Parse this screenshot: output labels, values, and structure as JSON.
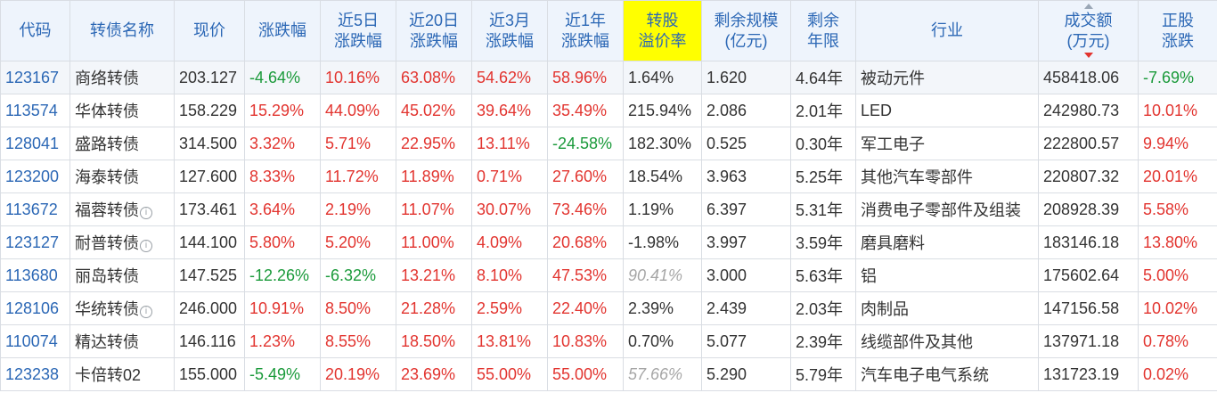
{
  "headers": [
    {
      "key": "code",
      "lines": [
        "代码"
      ]
    },
    {
      "key": "name",
      "lines": [
        "转债名称"
      ]
    },
    {
      "key": "price",
      "lines": [
        "现价"
      ]
    },
    {
      "key": "chg",
      "lines": [
        "涨跌幅"
      ]
    },
    {
      "key": "chg5d",
      "lines": [
        "近5日",
        "涨跌幅"
      ]
    },
    {
      "key": "chg20d",
      "lines": [
        "近20日",
        "涨跌幅"
      ]
    },
    {
      "key": "chg3m",
      "lines": [
        "近3月",
        "涨跌幅"
      ]
    },
    {
      "key": "chg1y",
      "lines": [
        "近1年",
        "涨跌幅"
      ]
    },
    {
      "key": "premium",
      "lines": [
        "转股",
        "溢价率"
      ]
    },
    {
      "key": "scale",
      "lines": [
        "剩余规模",
        "(亿元)"
      ]
    },
    {
      "key": "years",
      "lines": [
        "剩余",
        "年限"
      ]
    },
    {
      "key": "industry",
      "lines": [
        "行业"
      ]
    },
    {
      "key": "turnover",
      "lines": [
        "成交额",
        "(万元)"
      ]
    },
    {
      "key": "stock_chg",
      "lines": [
        "正股",
        "涨跌"
      ]
    }
  ],
  "rows": [
    {
      "code": "123167",
      "name": "商络转债",
      "info": false,
      "price": "203.127",
      "chg": "-4.64%",
      "chg5d": "10.16%",
      "chg20d": "63.08%",
      "chg3m": "54.62%",
      "chg1y": "58.96%",
      "premium": "1.64%",
      "premium_muted": false,
      "scale": "1.620",
      "years": "4.64年",
      "industry": "被动元件",
      "turnover": "458418.06",
      "stock_chg": "-7.69%"
    },
    {
      "code": "113574",
      "name": "华体转债",
      "info": false,
      "price": "158.229",
      "chg": "15.29%",
      "chg5d": "44.09%",
      "chg20d": "45.02%",
      "chg3m": "39.64%",
      "chg1y": "35.49%",
      "premium": "215.94%",
      "premium_muted": false,
      "scale": "2.086",
      "years": "2.01年",
      "industry": "LED",
      "turnover": "242980.73",
      "stock_chg": "10.01%"
    },
    {
      "code": "128041",
      "name": "盛路转债",
      "info": false,
      "price": "314.500",
      "chg": "3.32%",
      "chg5d": "5.71%",
      "chg20d": "22.95%",
      "chg3m": "13.11%",
      "chg1y": "-24.58%",
      "premium": "182.30%",
      "premium_muted": false,
      "scale": "0.525",
      "years": "0.30年",
      "industry": "军工电子",
      "turnover": "222800.57",
      "stock_chg": "9.94%"
    },
    {
      "code": "123200",
      "name": "海泰转债",
      "info": false,
      "price": "127.600",
      "chg": "8.33%",
      "chg5d": "11.72%",
      "chg20d": "11.89%",
      "chg3m": "0.71%",
      "chg1y": "27.60%",
      "premium": "18.54%",
      "premium_muted": false,
      "scale": "3.963",
      "years": "5.25年",
      "industry": "其他汽车零部件",
      "turnover": "220807.32",
      "stock_chg": "20.01%"
    },
    {
      "code": "113672",
      "name": "福蓉转债",
      "info": true,
      "price": "173.461",
      "chg": "3.64%",
      "chg5d": "2.19%",
      "chg20d": "11.07%",
      "chg3m": "30.07%",
      "chg1y": "73.46%",
      "premium": "1.19%",
      "premium_muted": false,
      "scale": "6.397",
      "years": "5.31年",
      "industry": "消费电子零部件及组装",
      "turnover": "208928.39",
      "stock_chg": "5.58%"
    },
    {
      "code": "123127",
      "name": "耐普转债",
      "info": true,
      "price": "144.100",
      "chg": "5.80%",
      "chg5d": "5.20%",
      "chg20d": "11.00%",
      "chg3m": "4.09%",
      "chg1y": "20.68%",
      "premium": "-1.98%",
      "premium_muted": false,
      "scale": "3.997",
      "years": "3.59年",
      "industry": "磨具磨料",
      "turnover": "183146.18",
      "stock_chg": "13.80%"
    },
    {
      "code": "113680",
      "name": "丽岛转债",
      "info": false,
      "price": "147.525",
      "chg": "-12.26%",
      "chg5d": "-6.32%",
      "chg20d": "13.21%",
      "chg3m": "8.10%",
      "chg1y": "47.53%",
      "premium": "90.41%",
      "premium_muted": true,
      "scale": "3.000",
      "years": "5.63年",
      "industry": "铝",
      "turnover": "175602.64",
      "stock_chg": "5.00%"
    },
    {
      "code": "128106",
      "name": "华统转债",
      "info": true,
      "price": "246.000",
      "chg": "10.91%",
      "chg5d": "8.50%",
      "chg20d": "21.28%",
      "chg3m": "2.59%",
      "chg1y": "22.40%",
      "premium": "2.39%",
      "premium_muted": false,
      "scale": "2.439",
      "years": "2.03年",
      "industry": "肉制品",
      "turnover": "147156.58",
      "stock_chg": "10.02%"
    },
    {
      "code": "110074",
      "name": "精达转债",
      "info": false,
      "price": "146.116",
      "chg": "1.23%",
      "chg5d": "8.55%",
      "chg20d": "18.50%",
      "chg3m": "13.81%",
      "chg1y": "10.83%",
      "premium": "0.70%",
      "premium_muted": false,
      "scale": "5.077",
      "years": "2.39年",
      "industry": "线缆部件及其他",
      "turnover": "137971.18",
      "stock_chg": "0.78%"
    },
    {
      "code": "123238",
      "name": "卡倍转02",
      "info": false,
      "price": "155.000",
      "chg": "-5.49%",
      "chg5d": "20.19%",
      "chg20d": "23.69%",
      "chg3m": "55.00%",
      "chg1y": "55.00%",
      "premium": "57.66%",
      "premium_muted": true,
      "scale": "5.290",
      "years": "5.79年",
      "industry": "汽车电子电气系统",
      "turnover": "131723.19",
      "stock_chg": "0.02%"
    }
  ],
  "colors": {
    "header_bg": "#eef4fc",
    "header_text": "#2b67b5",
    "highlight": "#ffff00",
    "up": "#e2342f",
    "down": "#1a9a3a",
    "muted": "#a6a6a6"
  },
  "icons": {
    "info": "info-circle-icon",
    "sort": "sort-desc-icon"
  }
}
